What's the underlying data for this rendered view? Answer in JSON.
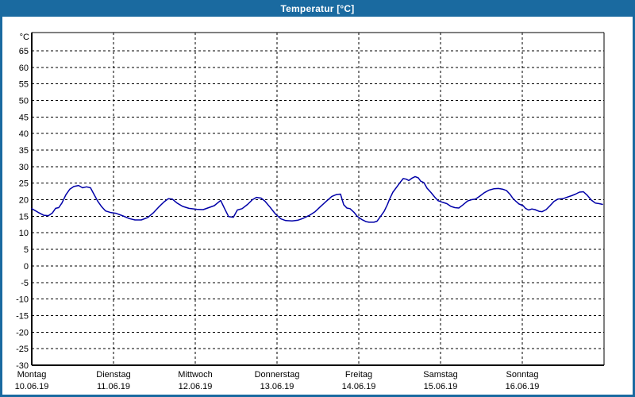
{
  "window": {
    "title": "Temperatur [°C]"
  },
  "colors": {
    "titlebar": "#1a6aa0",
    "frame": "#1a6aa0",
    "background": "#ffffff",
    "title_text": "#ffffff",
    "label_text": "#000000",
    "plot_border": "#000000",
    "grid": "#000000",
    "line": "#0000a8"
  },
  "chart_data": {
    "type": "line",
    "title": "Temperatur [°C]",
    "ylabel": "°C",
    "ylim": [
      -30,
      70.5
    ],
    "ytick_min": -30,
    "ytick_max": 65,
    "ytick_step": 5,
    "grid": true,
    "grid_style": "dashed",
    "legend": "none",
    "x_days": [
      {
        "name": "Montag",
        "date": "10.06.19"
      },
      {
        "name": "Dienstag",
        "date": "11.06.19"
      },
      {
        "name": "Mittwoch",
        "date": "12.06.19"
      },
      {
        "name": "Donnerstag",
        "date": "13.06.19"
      },
      {
        "name": "Freitag",
        "date": "14.06.19"
      },
      {
        "name": "Samstag",
        "date": "15.06.19"
      },
      {
        "name": "Sonntag",
        "date": "16.06.19"
      }
    ],
    "series": [
      {
        "name": "Temperatur",
        "x_unit": "day_fraction_from_monday",
        "y_unit": "°C",
        "points": [
          [
            0.0,
            17.3
          ],
          [
            0.078,
            16.2
          ],
          [
            0.146,
            15.3
          ],
          [
            0.204,
            15.2
          ],
          [
            0.252,
            16.0
          ],
          [
            0.291,
            17.4
          ],
          [
            0.33,
            17.6
          ],
          [
            0.369,
            19.0
          ],
          [
            0.417,
            21.5
          ],
          [
            0.466,
            23.2
          ],
          [
            0.515,
            24.0
          ],
          [
            0.573,
            24.3
          ],
          [
            0.621,
            23.6
          ],
          [
            0.67,
            23.9
          ],
          [
            0.718,
            23.6
          ],
          [
            0.757,
            21.8
          ],
          [
            0.806,
            19.6
          ],
          [
            0.854,
            17.9
          ],
          [
            0.903,
            16.6
          ],
          [
            0.971,
            16.1
          ],
          [
            1.029,
            15.9
          ],
          [
            1.117,
            15.1
          ],
          [
            1.194,
            14.3
          ],
          [
            1.262,
            13.9
          ],
          [
            1.34,
            13.9
          ],
          [
            1.417,
            14.6
          ],
          [
            1.485,
            16.0
          ],
          [
            1.553,
            17.8
          ],
          [
            1.621,
            19.4
          ],
          [
            1.67,
            20.3
          ],
          [
            1.718,
            20.2
          ],
          [
            1.777,
            19.0
          ],
          [
            1.845,
            18.0
          ],
          [
            1.922,
            17.4
          ],
          [
            2.019,
            17.1
          ],
          [
            2.097,
            17.0
          ],
          [
            2.165,
            17.6
          ],
          [
            2.233,
            18.2
          ],
          [
            2.311,
            19.8
          ],
          [
            2.359,
            17.3
          ],
          [
            2.408,
            14.9
          ],
          [
            2.466,
            14.7
          ],
          [
            2.515,
            16.9
          ],
          [
            2.573,
            17.3
          ],
          [
            2.641,
            18.6
          ],
          [
            2.699,
            20.0
          ],
          [
            2.748,
            20.7
          ],
          [
            2.806,
            20.5
          ],
          [
            2.854,
            19.5
          ],
          [
            2.913,
            17.8
          ],
          [
            2.981,
            15.7
          ],
          [
            3.049,
            14.2
          ],
          [
            3.107,
            13.7
          ],
          [
            3.184,
            13.6
          ],
          [
            3.252,
            13.8
          ],
          [
            3.32,
            14.4
          ],
          [
            3.398,
            15.3
          ],
          [
            3.466,
            16.4
          ],
          [
            3.534,
            18.0
          ],
          [
            3.602,
            19.5
          ],
          [
            3.67,
            21.0
          ],
          [
            3.728,
            21.6
          ],
          [
            3.777,
            21.7
          ],
          [
            3.816,
            18.5
          ],
          [
            3.854,
            17.5
          ],
          [
            3.893,
            17.3
          ],
          [
            3.942,
            16.2
          ],
          [
            3.981,
            15.0
          ],
          [
            4.039,
            14.0
          ],
          [
            4.087,
            13.4
          ],
          [
            4.126,
            13.2
          ],
          [
            4.184,
            13.2
          ],
          [
            4.223,
            13.5
          ],
          [
            4.262,
            14.8
          ],
          [
            4.311,
            16.5
          ],
          [
            4.35,
            18.5
          ],
          [
            4.379,
            20.3
          ],
          [
            4.417,
            22.3
          ],
          [
            4.466,
            23.9
          ],
          [
            4.505,
            25.2
          ],
          [
            4.544,
            26.4
          ],
          [
            4.583,
            26.2
          ],
          [
            4.612,
            25.8
          ],
          [
            4.65,
            26.5
          ],
          [
            4.689,
            27.0
          ],
          [
            4.728,
            26.6
          ],
          [
            4.757,
            25.6
          ],
          [
            4.796,
            25.2
          ],
          [
            4.835,
            23.5
          ],
          [
            4.883,
            22.2
          ],
          [
            4.932,
            20.7
          ],
          [
            4.971,
            19.7
          ],
          [
            5.029,
            19.2
          ],
          [
            5.078,
            18.8
          ],
          [
            5.126,
            18.0
          ],
          [
            5.175,
            17.6
          ],
          [
            5.223,
            17.5
          ],
          [
            5.272,
            18.4
          ],
          [
            5.33,
            19.6
          ],
          [
            5.379,
            20.0
          ],
          [
            5.427,
            20.2
          ],
          [
            5.476,
            21.0
          ],
          [
            5.534,
            22.1
          ],
          [
            5.592,
            22.9
          ],
          [
            5.65,
            23.3
          ],
          [
            5.708,
            23.4
          ],
          [
            5.757,
            23.2
          ],
          [
            5.806,
            22.8
          ],
          [
            5.854,
            21.5
          ],
          [
            5.883,
            20.5
          ],
          [
            5.922,
            19.5
          ],
          [
            5.961,
            18.7
          ],
          [
            6.01,
            18.2
          ],
          [
            6.039,
            17.4
          ],
          [
            6.078,
            16.9
          ],
          [
            6.117,
            17.2
          ],
          [
            6.155,
            17.0
          ],
          [
            6.204,
            16.5
          ],
          [
            6.243,
            16.4
          ],
          [
            6.291,
            17.0
          ],
          [
            6.34,
            18.2
          ],
          [
            6.388,
            19.5
          ],
          [
            6.437,
            20.2
          ],
          [
            6.495,
            20.3
          ],
          [
            6.553,
            20.8
          ],
          [
            6.602,
            21.2
          ],
          [
            6.65,
            21.7
          ],
          [
            6.699,
            22.3
          ],
          [
            6.748,
            22.4
          ],
          [
            6.796,
            21.3
          ],
          [
            6.845,
            19.9
          ],
          [
            6.893,
            19.0
          ],
          [
            6.942,
            18.8
          ],
          [
            6.981,
            18.6
          ]
        ]
      }
    ]
  }
}
